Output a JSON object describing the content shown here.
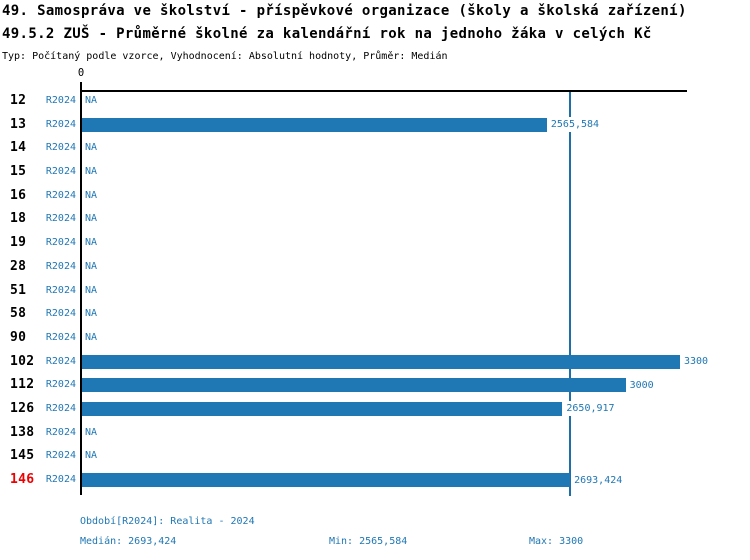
{
  "header": {
    "title_line1": "49. Samospráva ve školství - příspěvkové organizace (školy a školská zařízení)",
    "title_line2": "49.5.2 ZUŠ - Průměrné školné za kalendářní rok na jednoho žáka v celých Kč",
    "subtitle": "Typ: Počítaný podle vzorce, Vyhodnocení: Absolutní hodnoty, Průměr: Medián"
  },
  "chart_data": {
    "type": "bar",
    "orientation": "horizontal",
    "title": "49.5.2 ZUŠ - Průměrné školné za kalendářní rok na jednoho žáka v celých Kč",
    "period": "R2024",
    "origin_tick_label": "0",
    "xlim": [
      0,
      3300
    ],
    "categories": [
      "12",
      "13",
      "14",
      "15",
      "16",
      "18",
      "19",
      "28",
      "51",
      "58",
      "90",
      "102",
      "112",
      "126",
      "138",
      "145",
      "146"
    ],
    "values": [
      null,
      2565.584,
      null,
      null,
      null,
      null,
      null,
      null,
      null,
      null,
      null,
      3300,
      3000,
      2650.917,
      null,
      null,
      2693.424
    ],
    "value_labels": [
      "NA",
      "2565,584",
      "NA",
      "NA",
      "NA",
      "NA",
      "NA",
      "NA",
      "NA",
      "NA",
      "NA",
      "3300",
      "3000",
      "2650,917",
      "NA",
      "NA",
      "2693,424"
    ],
    "highlighted_category": "146",
    "median_line_value": 2693.424,
    "stats": {
      "median": 2693.424,
      "min": 2565.584,
      "max": 3300
    },
    "colors": {
      "bar": "#1f77b4",
      "text_blue": "#1f77b4",
      "median_line": "#1e6fa8",
      "highlight_row": "#ee0000",
      "axis": "#000000"
    }
  },
  "footer": {
    "period_line": "Období[R2024]: Realita - 2024",
    "median": "Medián: 2693,424",
    "min": "Min: 2565,584",
    "max": "Max: 3300"
  }
}
